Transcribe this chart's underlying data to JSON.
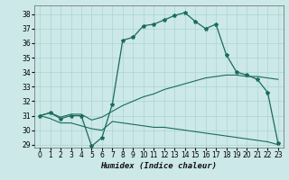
{
  "xlabel": "Humidex (Indice chaleur)",
  "bg_color": "#cce8e8",
  "grid_color": "#aad4d4",
  "line_color": "#1a6b5a",
  "xlim": [
    -0.5,
    23.5
  ],
  "ylim": [
    28.8,
    38.6
  ],
  "yticks": [
    29,
    30,
    31,
    32,
    33,
    34,
    35,
    36,
    37,
    38
  ],
  "xticks": [
    0,
    1,
    2,
    3,
    4,
    5,
    6,
    7,
    8,
    9,
    10,
    11,
    12,
    13,
    14,
    15,
    16,
    17,
    18,
    19,
    20,
    21,
    22,
    23
  ],
  "main_line": [
    31.0,
    31.2,
    30.8,
    31.0,
    31.0,
    28.9,
    29.5,
    31.8,
    36.2,
    36.4,
    37.2,
    37.3,
    37.6,
    37.9,
    38.1,
    37.5,
    37.0,
    37.3,
    35.2,
    34.0,
    33.8,
    33.5,
    32.6,
    29.1
  ],
  "lower_line": [
    31.0,
    30.8,
    30.5,
    30.5,
    30.3,
    30.1,
    30.0,
    30.6,
    30.5,
    30.4,
    30.3,
    30.2,
    30.2,
    30.1,
    30.0,
    29.9,
    29.8,
    29.7,
    29.6,
    29.5,
    29.4,
    29.3,
    29.2,
    29.0
  ],
  "upper_line": [
    31.0,
    31.2,
    30.9,
    31.1,
    31.1,
    30.7,
    30.9,
    31.3,
    31.7,
    32.0,
    32.3,
    32.5,
    32.8,
    33.0,
    33.2,
    33.4,
    33.6,
    33.7,
    33.8,
    33.8,
    33.7,
    33.7,
    33.6,
    33.5
  ],
  "xlabel_fontsize": 6.5,
  "tick_fontsize": 5.5
}
